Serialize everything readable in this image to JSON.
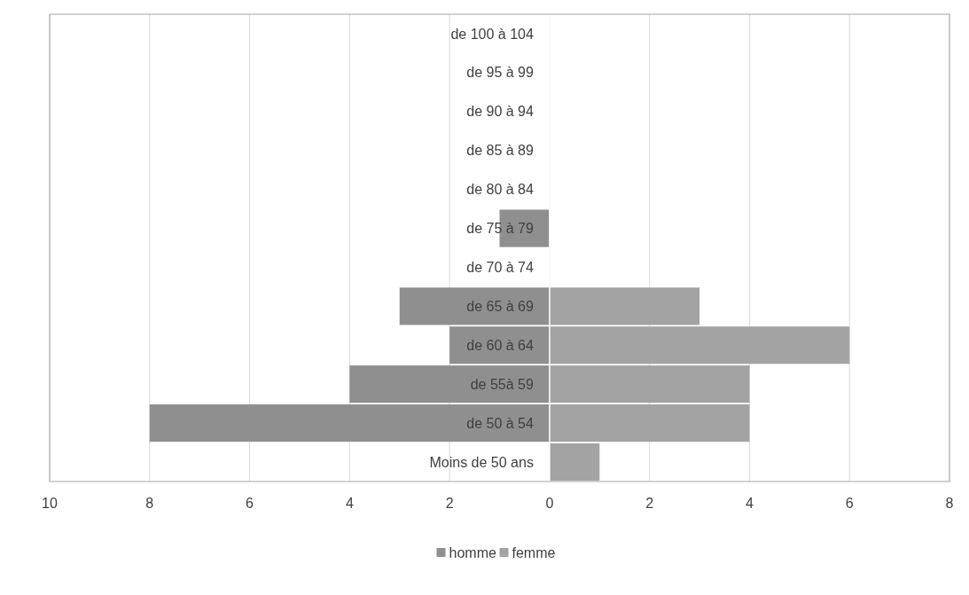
{
  "chart_data": {
    "type": "bar",
    "orientation": "horizontal",
    "categories": [
      "de 100 à 104",
      "de 95 à 99",
      "de 90 à 94",
      "de 85 à 89",
      "de 80 à 84",
      "de 75 à 79",
      "de 70 à 74",
      "de 65 à 69",
      "de 60 à 64",
      "de 55à 59",
      "de 50 à 54",
      "Moins de 50 ans"
    ],
    "series": [
      {
        "name": "homme",
        "color": "#8f8f8f",
        "values": [
          0,
          0,
          0,
          0,
          0,
          -1,
          0,
          -3,
          -2,
          -4,
          -8,
          0
        ]
      },
      {
        "name": "femme",
        "color": "#a3a3a3",
        "values": [
          0,
          0,
          0,
          0,
          0,
          0,
          0,
          3,
          6,
          4,
          4,
          1
        ]
      }
    ],
    "xlim": [
      -10,
      8
    ],
    "xticks": [
      {
        "value": -10,
        "label": "10"
      },
      {
        "value": -8,
        "label": "8"
      },
      {
        "value": -6,
        "label": "6"
      },
      {
        "value": -4,
        "label": "4"
      },
      {
        "value": -2,
        "label": "2"
      },
      0,
      2,
      4,
      6,
      8
    ],
    "grid": "x",
    "legend": "bottom"
  }
}
